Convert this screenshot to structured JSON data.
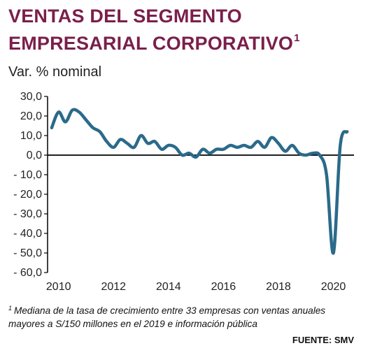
{
  "title_line1": "VENTAS DEL SEGMENTO",
  "title_line2": "EMPRESARIAL  CORPORATIVO",
  "title_sup": "1",
  "subtitle": "Var. % nominal",
  "footnote_marker": "1",
  "footnote": "Mediana de la tasa de crecimiento entre 33 empresas con ventas anuales mayores a S/150 millones en el 2019 e información pública",
  "source": "FUENTE: SMV",
  "colors": {
    "title": "#7a1f4b",
    "line": "#2b6a8a"
  },
  "chart_data": {
    "type": "line",
    "title": "VENTAS DEL SEGMENTO EMPRESARIAL CORPORATIVO",
    "ylabel": "Var. % nominal",
    "xlabel": "",
    "ylim": [
      -60,
      30
    ],
    "xlim": [
      2009.6,
      2020.75
    ],
    "y_ticks": [
      30,
      20,
      10,
      0,
      -10,
      -20,
      -30,
      -40,
      -50,
      -60
    ],
    "y_tick_labels": [
      "30,0",
      "20,0",
      "10,0",
      "0,0",
      "- 10,0",
      "- 20,0",
      "- 30,0",
      "- 40,0",
      "- 50,0",
      "- 60,0"
    ],
    "x_ticks": [
      2010,
      2012,
      2014,
      2016,
      2018,
      2020
    ],
    "x_tick_labels": [
      "2010",
      "2012",
      "2014",
      "2016",
      "2018",
      "2020"
    ],
    "grid": false,
    "series": [
      {
        "x": [
          2009.75,
          2010.0,
          2010.25,
          2010.5,
          2010.75,
          2011.0,
          2011.25,
          2011.5,
          2011.75,
          2012.0,
          2012.25,
          2012.5,
          2012.75,
          2013.0,
          2013.25,
          2013.5,
          2013.75,
          2014.0,
          2014.25,
          2014.5,
          2014.75,
          2015.0,
          2015.25,
          2015.5,
          2015.75,
          2016.0,
          2016.25,
          2016.5,
          2016.75,
          2017.0,
          2017.25,
          2017.5,
          2017.75,
          2018.0,
          2018.25,
          2018.5,
          2018.75,
          2019.0,
          2019.25,
          2019.5,
          2019.75,
          2020.0,
          2020.25,
          2020.5
        ],
        "y": [
          14,
          22,
          17,
          23,
          22,
          18,
          14,
          12,
          7,
          4,
          8,
          6,
          4,
          10,
          6,
          7,
          3,
          5,
          4,
          0,
          1,
          -1,
          3,
          1,
          3,
          3,
          5,
          4,
          5,
          4,
          7,
          4,
          9,
          6,
          2,
          5,
          1,
          0,
          1,
          0,
          -10,
          -50,
          5,
          12
        ]
      }
    ]
  }
}
